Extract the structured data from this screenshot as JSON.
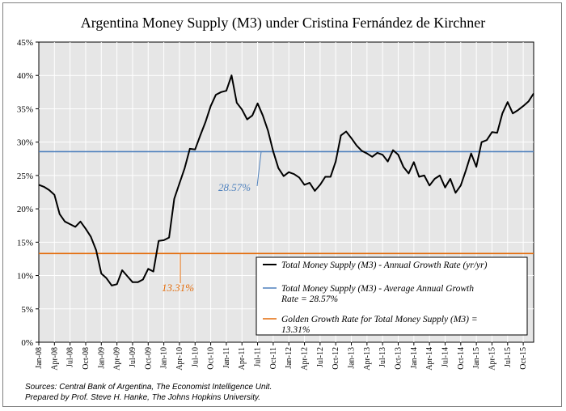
{
  "chart_data": {
    "type": "line",
    "title": "Argentina Money Supply (M3) under Cristina Fernández de Kirchner",
    "ylabel": "",
    "xlabel": "",
    "ylim": [
      0,
      45
    ],
    "yticks": [
      0,
      5,
      10,
      15,
      20,
      25,
      30,
      35,
      40,
      45
    ],
    "ytick_labels": [
      "0%",
      "5%",
      "10%",
      "15%",
      "20%",
      "25%",
      "30%",
      "35%",
      "40%",
      "45%"
    ],
    "x_tick_labels": [
      "Jan-08",
      "Apr-08",
      "Jul-08",
      "Oct-08",
      "Jan-09",
      "Apr-09",
      "Jul-09",
      "Oct-09",
      "Jan-10",
      "Apr-10",
      "Jul-10",
      "Oct-10",
      "Jan-11",
      "Apr-11",
      "Jul-11",
      "Oct-11",
      "Jan-12",
      "Apr-12",
      "Jul-12",
      "Oct-12",
      "Jan-13",
      "Apr-13",
      "Jul-13",
      "Oct-13",
      "Jan-14",
      "Apr-14",
      "Jul-14",
      "Oct-14",
      "Jan-15",
      "Apr-15",
      "Jul-15",
      "Oct-15"
    ],
    "grid": true,
    "series": [
      {
        "name": "Total Money Supply (M3) - Annual Growth Rate (yr/yr)",
        "color": "#000000",
        "style": "line",
        "values": [
          23.6,
          23.3,
          22.8,
          22.1,
          19.2,
          18.1,
          17.7,
          17.3,
          18.1,
          17.0,
          15.8,
          13.8,
          10.3,
          9.6,
          8.5,
          8.7,
          10.8,
          9.9,
          9.0,
          9.0,
          9.4,
          11.0,
          10.6,
          15.2,
          15.3,
          15.7,
          21.5,
          23.8,
          26.1,
          29.0,
          28.9,
          31.0,
          33.0,
          35.4,
          37.1,
          37.5,
          37.7,
          40.0,
          35.9,
          34.9,
          33.4,
          34.0,
          35.8,
          34.0,
          31.7,
          28.6,
          26.1,
          24.9,
          25.5,
          25.2,
          24.7,
          23.6,
          23.9,
          22.7,
          23.6,
          24.8,
          24.8,
          27.1,
          31.0,
          31.6,
          30.6,
          29.5,
          28.7,
          28.3,
          27.8,
          28.4,
          28.1,
          27.1,
          28.8,
          28.1,
          26.3,
          25.3,
          27.0,
          24.8,
          25.0,
          23.5,
          24.5,
          25.0,
          23.2,
          24.5,
          22.4,
          23.5,
          25.8,
          28.3,
          26.3,
          30.0,
          30.3,
          31.5,
          31.4,
          34.3,
          36.0,
          34.3,
          34.8,
          35.4,
          36.1,
          37.3
        ]
      },
      {
        "name": "Total Money Supply (M3) - Average Annual Growth Rate = 28.57%",
        "color": "#4F81BD",
        "style": "hline",
        "value": 28.57
      },
      {
        "name": "Golden Growth Rate for Total Money Supply (M3) = 13.31%",
        "color": "#E46C0A",
        "style": "hline",
        "value": 13.31
      }
    ],
    "annotations": [
      {
        "text": "28.57%",
        "color": "#4F81BD"
      },
      {
        "text": "13.31%",
        "color": "#E46C0A"
      }
    ],
    "legend": {
      "placement": "bottom-right",
      "items": [
        {
          "lines": [
            "Total Money Supply (M3) - Annual Growth Rate (yr/yr)"
          ],
          "color": "#000000"
        },
        {
          "lines": [
            "Total Money Supply (M3) - Average Annual Growth",
            "Rate = 28.57%"
          ],
          "color": "#4F81BD"
        },
        {
          "lines": [
            "Golden Growth Rate for Total Money Supply (M3) =",
            "13.31%"
          ],
          "color": "#E46C0A"
        }
      ]
    }
  },
  "footer": {
    "line1": "Sources: Central Bank of Argentina, The Economist Intelligence Unit.",
    "line2": "Prepared by Prof. Steve H. Hanke, The Johns Hopkins University."
  }
}
